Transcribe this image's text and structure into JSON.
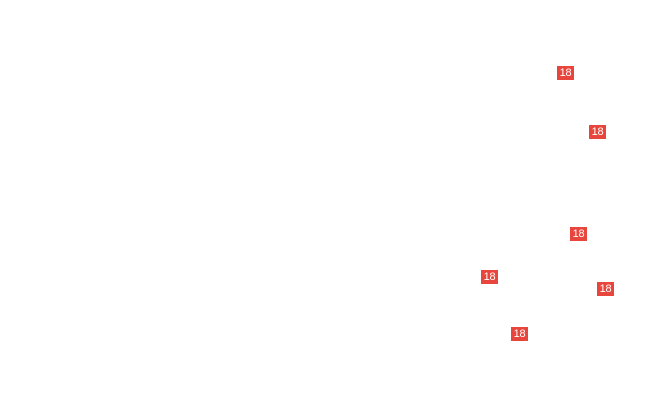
{
  "badge_color": "#e8453c",
  "markers": [
    {
      "label": "18"
    },
    {
      "label": "18"
    },
    {
      "label": "18"
    },
    {
      "label": "18"
    },
    {
      "label": "18"
    },
    {
      "label": "18"
    }
  ]
}
